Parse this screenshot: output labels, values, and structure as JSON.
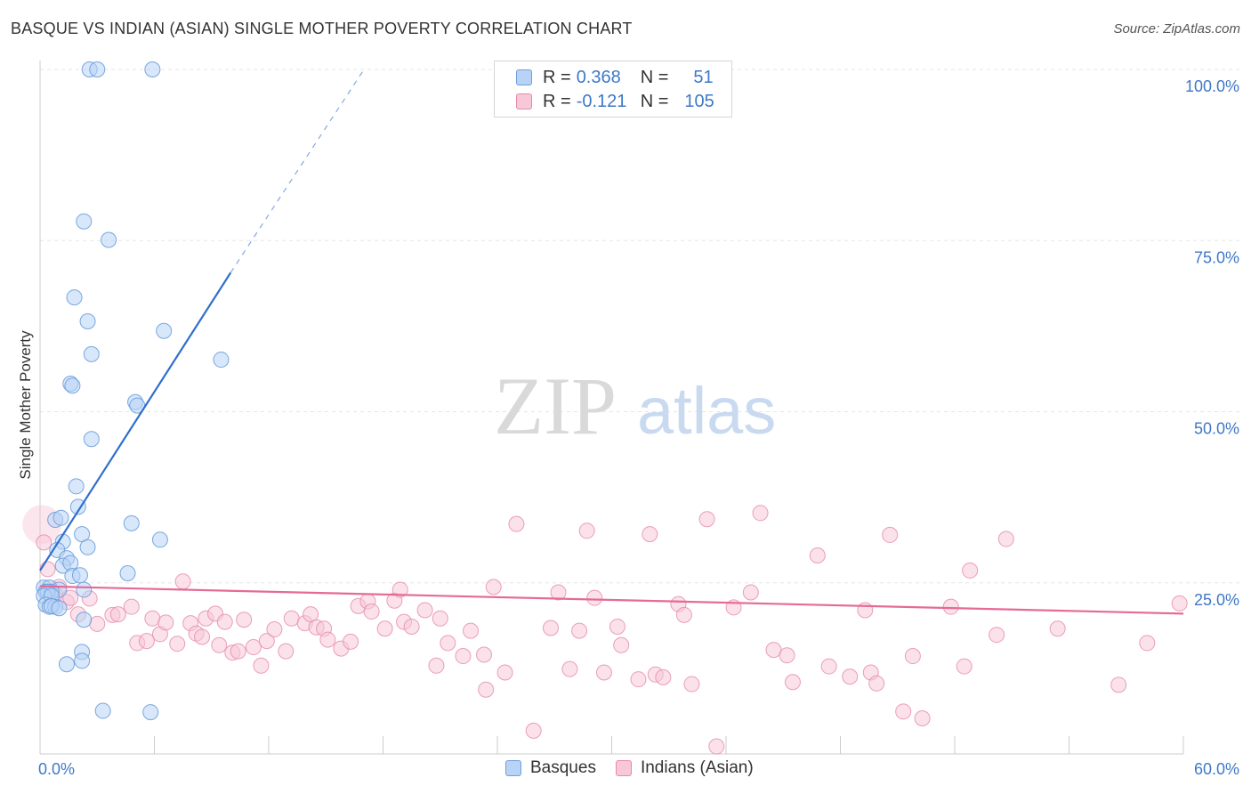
{
  "title": "BASQUE VS INDIAN (ASIAN) SINGLE MOTHER POVERTY CORRELATION CHART",
  "source": "Source: ZipAtlas.com",
  "watermark": {
    "zip": "ZIP",
    "atlas": "atlas"
  },
  "legend": {
    "rows": [
      {
        "r_label": "R =",
        "r_value": "0.368",
        "n_label": "N =",
        "n_value": "51",
        "color": "#b8d3f5",
        "border": "#6d9fdc"
      },
      {
        "r_label": "R =",
        "r_value": "-0.121",
        "n_label": "N =",
        "n_value": "105",
        "color": "#f8c8d8",
        "border": "#e58aa8"
      }
    ]
  },
  "bottom_legend": {
    "basques": "Basques",
    "indians": "Indians (Asian)"
  },
  "chart_data": {
    "type": "scatter",
    "title": "BASQUE VS INDIAN (ASIAN) SINGLE MOTHER POVERTY CORRELATION CHART",
    "ylabel": "Single Mother Poverty",
    "xlabel": "",
    "xlim": [
      0,
      60
    ],
    "ylim": [
      0,
      100
    ],
    "x_tick_labels": [
      "0.0%",
      "60.0%"
    ],
    "y_tick_labels": [
      "25.0%",
      "50.0%",
      "75.0%",
      "100.0%"
    ],
    "y_tick_values": [
      25,
      50,
      75,
      100
    ],
    "grid": true,
    "colors": {
      "basques": "#6d9fdc",
      "basques_fill": "#b8d3f5",
      "indians": "#e58aa8",
      "indians_fill": "#f8c8d8",
      "basques_line": "#2f6fcc",
      "indians_line": "#e56a98",
      "tick_label": "#3f78c8"
    },
    "series": [
      {
        "name": "Basques",
        "points": [
          [
            2.6,
            100
          ],
          [
            3.0,
            100
          ],
          [
            5.9,
            100
          ],
          [
            2.3,
            77.8
          ],
          [
            3.6,
            75.1
          ],
          [
            1.8,
            66.7
          ],
          [
            2.5,
            63.2
          ],
          [
            6.5,
            61.8
          ],
          [
            2.7,
            58.4
          ],
          [
            9.5,
            57.6
          ],
          [
            1.6,
            54.1
          ],
          [
            1.7,
            53.8
          ],
          [
            5.0,
            51.4
          ],
          [
            5.1,
            50.9
          ],
          [
            2.7,
            46.0
          ],
          [
            1.9,
            39.1
          ],
          [
            2.0,
            36.1
          ],
          [
            0.8,
            34.2
          ],
          [
            4.8,
            33.7
          ],
          [
            1.1,
            34.5
          ],
          [
            2.2,
            32.1
          ],
          [
            1.2,
            31.0
          ],
          [
            6.3,
            31.3
          ],
          [
            2.5,
            30.2
          ],
          [
            0.9,
            29.8
          ],
          [
            1.4,
            28.6
          ],
          [
            1.2,
            27.5
          ],
          [
            1.6,
            27.9
          ],
          [
            4.6,
            26.4
          ],
          [
            1.7,
            26.0
          ],
          [
            2.1,
            26.1
          ],
          [
            0.2,
            24.3
          ],
          [
            0.5,
            24.3
          ],
          [
            1.0,
            24.0
          ],
          [
            2.3,
            24.0
          ],
          [
            0.3,
            23.7
          ],
          [
            0.6,
            23.7
          ],
          [
            0.4,
            23.7
          ],
          [
            0.2,
            23.1
          ],
          [
            0.6,
            23.1
          ],
          [
            0.3,
            21.8
          ],
          [
            0.5,
            21.5
          ],
          [
            0.8,
            21.5
          ],
          [
            2.3,
            19.6
          ],
          [
            2.2,
            14.9
          ],
          [
            1.4,
            13.1
          ],
          [
            2.2,
            13.6
          ],
          [
            3.3,
            6.3
          ],
          [
            5.8,
            6.1
          ],
          [
            0.6,
            21.6
          ],
          [
            1.0,
            21.3
          ]
        ],
        "trendline": {
          "x": [
            0,
            10
          ],
          "y": [
            26.8,
            70.3
          ],
          "dashed_to": [
            17,
            100
          ]
        }
      },
      {
        "name": "Indians (Asian)",
        "points": [
          [
            0.2,
            30.9
          ],
          [
            0.4,
            27.0
          ],
          [
            0.8,
            23.3
          ],
          [
            1.0,
            24.4
          ],
          [
            1.4,
            22.2
          ],
          [
            1.6,
            22.8
          ],
          [
            2.6,
            22.7
          ],
          [
            2.0,
            20.4
          ],
          [
            3.0,
            19.0
          ],
          [
            3.8,
            20.3
          ],
          [
            4.1,
            20.4
          ],
          [
            4.8,
            21.5
          ],
          [
            5.1,
            16.2
          ],
          [
            5.6,
            16.5
          ],
          [
            5.9,
            19.8
          ],
          [
            6.3,
            17.5
          ],
          [
            6.6,
            19.2
          ],
          [
            7.2,
            16.1
          ],
          [
            7.5,
            25.2
          ],
          [
            7.9,
            19.1
          ],
          [
            8.2,
            17.6
          ],
          [
            8.5,
            17.1
          ],
          [
            8.7,
            19.8
          ],
          [
            9.2,
            20.5
          ],
          [
            9.4,
            15.9
          ],
          [
            9.7,
            19.3
          ],
          [
            10.1,
            14.8
          ],
          [
            10.4,
            15.0
          ],
          [
            10.7,
            19.6
          ],
          [
            11.2,
            15.6
          ],
          [
            11.6,
            12.9
          ],
          [
            11.9,
            16.5
          ],
          [
            12.3,
            18.2
          ],
          [
            12.9,
            15.0
          ],
          [
            13.2,
            19.8
          ],
          [
            13.9,
            19.1
          ],
          [
            14.2,
            20.4
          ],
          [
            14.5,
            18.5
          ],
          [
            14.9,
            18.3
          ],
          [
            15.1,
            16.7
          ],
          [
            15.8,
            15.4
          ],
          [
            16.3,
            16.4
          ],
          [
            16.7,
            21.6
          ],
          [
            17.2,
            22.3
          ],
          [
            17.4,
            20.8
          ],
          [
            18.1,
            18.3
          ],
          [
            18.6,
            22.4
          ],
          [
            18.9,
            24.0
          ],
          [
            19.1,
            19.3
          ],
          [
            19.5,
            18.6
          ],
          [
            20.2,
            21.0
          ],
          [
            20.8,
            12.9
          ],
          [
            21.0,
            19.8
          ],
          [
            21.4,
            16.2
          ],
          [
            22.2,
            14.3
          ],
          [
            22.6,
            18.0
          ],
          [
            23.3,
            14.5
          ],
          [
            23.8,
            24.4
          ],
          [
            23.4,
            9.4
          ],
          [
            24.4,
            11.9
          ],
          [
            25.0,
            33.6
          ],
          [
            25.9,
            3.4
          ],
          [
            26.8,
            18.4
          ],
          [
            27.2,
            23.6
          ],
          [
            27.8,
            12.4
          ],
          [
            28.3,
            18.0
          ],
          [
            28.7,
            32.6
          ],
          [
            29.1,
            22.8
          ],
          [
            29.6,
            11.9
          ],
          [
            30.3,
            18.6
          ],
          [
            30.5,
            15.9
          ],
          [
            31.4,
            10.9
          ],
          [
            32.0,
            32.1
          ],
          [
            32.3,
            11.6
          ],
          [
            32.7,
            11.2
          ],
          [
            33.5,
            21.9
          ],
          [
            33.8,
            20.3
          ],
          [
            34.2,
            10.2
          ],
          [
            35.0,
            34.3
          ],
          [
            35.5,
            1.1
          ],
          [
            36.4,
            21.4
          ],
          [
            37.3,
            23.6
          ],
          [
            37.8,
            35.2
          ],
          [
            38.5,
            15.2
          ],
          [
            39.2,
            14.4
          ],
          [
            39.5,
            10.5
          ],
          [
            40.8,
            29.0
          ],
          [
            41.4,
            12.8
          ],
          [
            42.5,
            11.3
          ],
          [
            43.3,
            21.0
          ],
          [
            43.6,
            11.9
          ],
          [
            43.9,
            10.3
          ],
          [
            44.6,
            32.0
          ],
          [
            45.3,
            6.2
          ],
          [
            45.8,
            14.3
          ],
          [
            46.3,
            5.2
          ],
          [
            47.8,
            21.5
          ],
          [
            48.5,
            12.8
          ],
          [
            48.8,
            26.8
          ],
          [
            50.2,
            17.4
          ],
          [
            50.7,
            31.4
          ],
          [
            53.4,
            18.3
          ],
          [
            58.1,
            16.2
          ],
          [
            59.8,
            22.0
          ],
          [
            56.6,
            10.1
          ]
        ],
        "trendline": {
          "x": [
            0,
            60
          ],
          "y": [
            24.5,
            20.5
          ]
        }
      }
    ]
  }
}
